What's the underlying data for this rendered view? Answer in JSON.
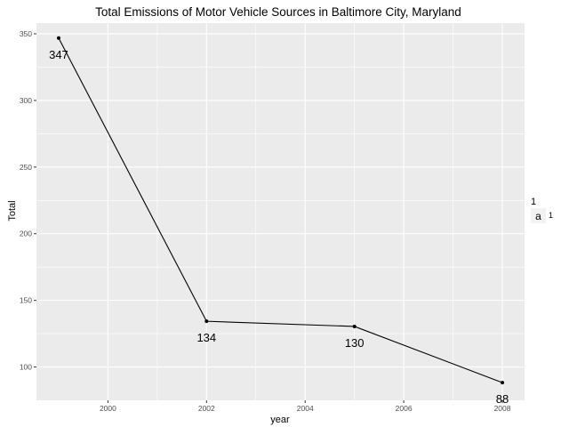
{
  "chart_data": {
    "type": "line",
    "title": "Total Emissions of Motor Vehicle Sources in Baltimore City, Maryland",
    "xlabel": "year",
    "ylabel": "Total",
    "x": [
      1999,
      2002,
      2005,
      2008
    ],
    "series": [
      {
        "values": [
          346.82,
          134.31,
          130.43,
          88.28
        ]
      }
    ],
    "data_labels": [
      "347",
      "134",
      "130",
      "88"
    ],
    "xlim": [
      1998.55,
      2008.45
    ],
    "ylim": [
      75,
      358
    ],
    "xticks": [
      2000,
      2002,
      2004,
      2006,
      2008
    ],
    "xtick_labels": [
      "2000",
      "2002",
      "2004",
      "2006",
      "2008"
    ],
    "yticks": [
      100,
      150,
      200,
      250,
      300,
      350
    ],
    "ytick_labels": [
      "100",
      "150",
      "200",
      "250",
      "300",
      "350"
    ],
    "grid": true,
    "legend": {
      "position": "right",
      "title": "1",
      "key_text": "a",
      "label": "1"
    },
    "colors": {
      "panel": "#ebebeb",
      "grid": "#ffffff",
      "line": "#000000",
      "legend_key": "#f2f2f2"
    }
  }
}
